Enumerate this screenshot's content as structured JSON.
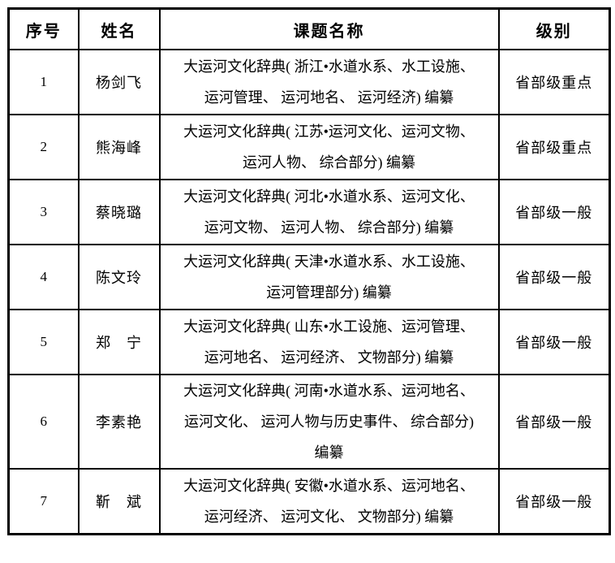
{
  "colors": {
    "border": "#000000",
    "text": "#000000",
    "background": "#ffffff"
  },
  "table": {
    "headers": [
      "序号",
      "姓名",
      "课题名称",
      "级别"
    ],
    "rows": [
      {
        "no": "1",
        "name": "杨剑飞",
        "topic_lines": [
          "大运河文化辞典( 浙江•水道水系、水工设施、",
          "运河管理、 运河地名、 运河经济) 编纂"
        ],
        "level": "省部级重点"
      },
      {
        "no": "2",
        "name": "熊海峰",
        "topic_lines": [
          "大运河文化辞典( 江苏•运河文化、运河文物、",
          "运河人物、 综合部分) 编纂"
        ],
        "level": "省部级重点"
      },
      {
        "no": "3",
        "name": "蔡晓璐",
        "topic_lines": [
          "大运河文化辞典( 河北•水道水系、运河文化、",
          "运河文物、 运河人物、 综合部分) 编纂"
        ],
        "level": "省部级一般"
      },
      {
        "no": "4",
        "name": "陈文玲",
        "topic_lines": [
          "大运河文化辞典( 天津•水道水系、水工设施、",
          "运河管理部分) 编纂"
        ],
        "level": "省部级一般"
      },
      {
        "no": "5",
        "name": "郑　宁",
        "topic_lines": [
          "大运河文化辞典( 山东•水工设施、运河管理、",
          "运河地名、 运河经济、 文物部分) 编纂"
        ],
        "level": "省部级一般"
      },
      {
        "no": "6",
        "name": "李素艳",
        "topic_lines": [
          "大运河文化辞典( 河南•水道水系、运河地名、",
          "运河文化、 运河人物与历史事件、 综合部分)",
          "编纂"
        ],
        "level": "省部级一般"
      },
      {
        "no": "7",
        "name": "靳　斌",
        "topic_lines": [
          "大运河文化辞典( 安徽•水道水系、运河地名、",
          "运河经济、 运河文化、 文物部分) 编纂"
        ],
        "level": "省部级一般"
      }
    ]
  }
}
